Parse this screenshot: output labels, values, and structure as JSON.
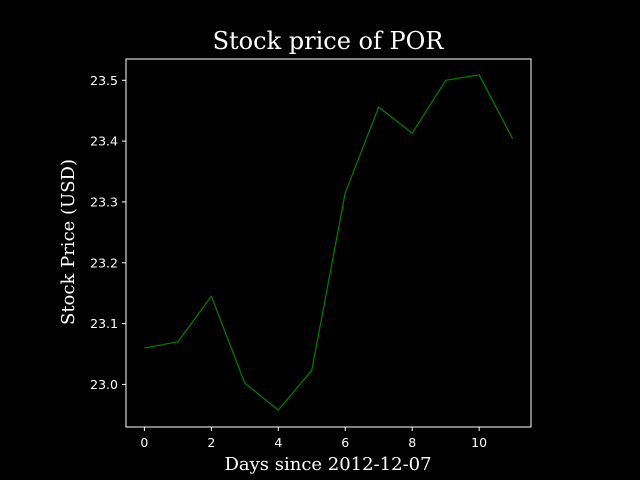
{
  "chart_data": {
    "type": "line",
    "title": "Stock price of POR",
    "xlabel": "Days since 2012-12-07",
    "ylabel": "Stock Price (USD)",
    "x": [
      0,
      1,
      2,
      3,
      4,
      5,
      6,
      7,
      8,
      9,
      10,
      11
    ],
    "series": [
      {
        "values": [
          23.06,
          23.07,
          23.145,
          23.002,
          22.958,
          23.023,
          23.315,
          23.456,
          23.413,
          23.5,
          23.509,
          23.404
        ]
      }
    ],
    "xlim": [
      -0.55,
      11.55
    ],
    "ylim": [
      22.93,
      23.535
    ],
    "xticks": [
      0,
      2,
      4,
      6,
      8,
      10
    ],
    "yticks": [
      23.0,
      23.1,
      23.2,
      23.3,
      23.4,
      23.5
    ],
    "ytick_labels": [
      "23.0",
      "23.1",
      "23.2",
      "23.3",
      "23.4",
      "23.5"
    ],
    "line_color": "#008000",
    "background": "#000000",
    "foreground": "#ffffff",
    "grid": false,
    "legend": "none"
  }
}
